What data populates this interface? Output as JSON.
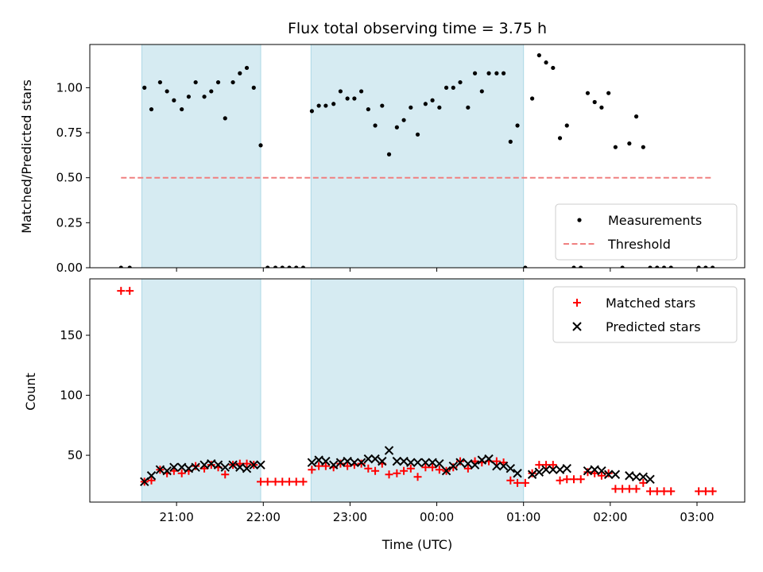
{
  "chart_data": [
    {
      "type": "scatter",
      "title": "Flux total observing time = 3.75 h",
      "ylabel": "Matched/Predicted stars",
      "xlabel": "",
      "x_unit": "hours since 00:00 UTC of first night (24 = 00:00 next day)",
      "xlim": [
        20.0,
        27.55
      ],
      "ylim": [
        0,
        1.24
      ],
      "yticks": [
        0.0,
        0.25,
        0.5,
        0.75,
        1.0
      ],
      "ytick_labels": [
        "0.00",
        "0.25",
        "0.50",
        "0.75",
        "1.00"
      ],
      "shaded_intervals": [
        [
          20.6,
          21.97
        ],
        [
          22.55,
          25.0
        ]
      ],
      "series": [
        {
          "name": "Measurements",
          "marker": "dot",
          "color": "#000000",
          "x": [
            20.36,
            20.46,
            20.63,
            20.71,
            20.81,
            20.89,
            20.97,
            21.06,
            21.14,
            21.22,
            21.32,
            21.4,
            21.48,
            21.56,
            21.65,
            21.73,
            21.81,
            21.89,
            21.97,
            22.05,
            22.14,
            22.22,
            22.3,
            22.38,
            22.46,
            22.56,
            22.64,
            22.72,
            22.81,
            22.89,
            22.97,
            23.05,
            23.13,
            23.21,
            23.29,
            23.37,
            23.45,
            23.54,
            23.62,
            23.7,
            23.78,
            23.87,
            23.95,
            24.03,
            24.11,
            24.19,
            24.27,
            24.36,
            24.44,
            24.52,
            24.6,
            24.69,
            24.77,
            24.85,
            24.93,
            25.02,
            25.1,
            25.18,
            25.26,
            25.34,
            25.42,
            25.5,
            25.58,
            25.66,
            25.74,
            25.82,
            25.9,
            25.98,
            26.06,
            26.14,
            26.22,
            26.3,
            26.38,
            26.46,
            26.54,
            26.62,
            26.7,
            27.02,
            27.1,
            27.18
          ],
          "y": [
            0.0,
            0.0,
            1.0,
            0.88,
            1.03,
            0.98,
            0.93,
            0.88,
            0.95,
            1.03,
            0.95,
            0.98,
            1.03,
            0.83,
            1.03,
            1.08,
            1.11,
            1.0,
            0.68,
            0.0,
            0.0,
            0.0,
            0.0,
            0.0,
            0.0,
            0.87,
            0.9,
            0.9,
            0.91,
            0.98,
            0.94,
            0.94,
            0.98,
            0.88,
            0.79,
            0.9,
            0.63,
            0.78,
            0.82,
            0.89,
            0.74,
            0.91,
            0.93,
            0.89,
            1.0,
            1.0,
            1.03,
            0.89,
            1.08,
            0.98,
            1.08,
            1.08,
            1.08,
            0.7,
            0.79,
            0.0,
            0.94,
            1.18,
            1.14,
            1.11,
            0.72,
            0.79,
            0.0,
            0.0,
            0.97,
            0.92,
            0.89,
            0.97,
            0.67,
            0.0,
            0.69,
            0.84,
            0.67,
            0.0,
            0.0,
            0.0,
            0.0,
            0.0,
            0.0,
            0.0
          ]
        },
        {
          "name": "Threshold",
          "type": "line",
          "style": "dashed",
          "color": "#f08080",
          "x": [
            20.36,
            27.18
          ],
          "y": [
            0.5,
            0.5
          ]
        }
      ],
      "legend_position": "lower right"
    },
    {
      "type": "scatter",
      "title": "",
      "ylabel": "Count",
      "xlabel": "Time (UTC)",
      "xlim": [
        20.0,
        27.55
      ],
      "ylim": [
        11,
        197
      ],
      "yticks": [
        50,
        100,
        150
      ],
      "ytick_labels": [
        "50",
        "100",
        "150"
      ],
      "xticks": [
        21,
        22,
        23,
        24,
        25,
        26,
        27
      ],
      "xtick_labels": [
        "21:00",
        "22:00",
        "23:00",
        "00:00",
        "01:00",
        "02:00",
        "03:00"
      ],
      "shaded_intervals": [
        [
          20.6,
          21.97
        ],
        [
          22.55,
          25.0
        ]
      ],
      "series": [
        {
          "name": "Matched stars",
          "marker": "plus",
          "color": "#ff0000",
          "x": [
            20.36,
            20.46,
            20.63,
            20.71,
            20.81,
            20.89,
            20.97,
            21.06,
            21.14,
            21.22,
            21.32,
            21.4,
            21.48,
            21.56,
            21.65,
            21.73,
            21.81,
            21.89,
            21.97,
            22.05,
            22.14,
            22.22,
            22.3,
            22.38,
            22.46,
            22.56,
            22.64,
            22.72,
            22.81,
            22.89,
            22.97,
            23.05,
            23.13,
            23.21,
            23.29,
            23.37,
            23.45,
            23.54,
            23.62,
            23.7,
            23.78,
            23.87,
            23.95,
            24.03,
            24.11,
            24.19,
            24.27,
            24.36,
            24.44,
            24.52,
            24.6,
            24.69,
            24.77,
            24.85,
            24.93,
            25.02,
            25.1,
            25.18,
            25.26,
            25.34,
            25.42,
            25.5,
            25.58,
            25.66,
            25.74,
            25.82,
            25.9,
            25.98,
            26.06,
            26.14,
            26.22,
            26.3,
            26.38,
            26.46,
            26.54,
            26.62,
            26.7,
            27.02,
            27.1,
            27.18
          ],
          "y": [
            187,
            187,
            28,
            29,
            38,
            35,
            37,
            35,
            37,
            41,
            39,
            42,
            40,
            34,
            42,
            43,
            43,
            42,
            28,
            28,
            28,
            28,
            28,
            28,
            28,
            38,
            41,
            41,
            40,
            43,
            41,
            42,
            43,
            39,
            37,
            43,
            34,
            35,
            37,
            39,
            32,
            40,
            40,
            38,
            37,
            40,
            45,
            39,
            45,
            44,
            45,
            45,
            44,
            29,
            27,
            27,
            35,
            42,
            42,
            42,
            29,
            30,
            30,
            30,
            36,
            35,
            33,
            35,
            22,
            22,
            22,
            22,
            27,
            20,
            20,
            20,
            20,
            20,
            20,
            20
          ]
        },
        {
          "name": "Predicted stars",
          "marker": "x",
          "color": "#000000",
          "x": [
            20.63,
            20.71,
            20.81,
            20.89,
            20.97,
            21.06,
            21.14,
            21.22,
            21.32,
            21.4,
            21.48,
            21.56,
            21.65,
            21.73,
            21.81,
            21.89,
            21.97,
            22.56,
            22.64,
            22.72,
            22.81,
            22.89,
            22.97,
            23.05,
            23.13,
            23.21,
            23.29,
            23.37,
            23.45,
            23.54,
            23.62,
            23.7,
            23.78,
            23.87,
            23.95,
            24.03,
            24.11,
            24.19,
            24.27,
            24.36,
            24.44,
            24.52,
            24.6,
            24.69,
            24.77,
            24.85,
            24.93,
            25.1,
            25.18,
            25.26,
            25.34,
            25.42,
            25.5,
            25.74,
            25.82,
            25.9,
            25.98,
            26.06,
            26.22,
            26.3,
            26.38,
            26.46
          ],
          "y": [
            28,
            33,
            38,
            37,
            40,
            40,
            39,
            40,
            42,
            43,
            42,
            40,
            42,
            40,
            39,
            42,
            42,
            44,
            46,
            45,
            42,
            44,
            45,
            44,
            44,
            47,
            47,
            45,
            54,
            45,
            45,
            44,
            44,
            44,
            44,
            43,
            37,
            41,
            44,
            43,
            42,
            46,
            47,
            41,
            41,
            39,
            35,
            34,
            36,
            38,
            38,
            38,
            39,
            37,
            38,
            37,
            34,
            34,
            33,
            32,
            32,
            30
          ]
        }
      ],
      "legend_position": "upper right"
    }
  ]
}
